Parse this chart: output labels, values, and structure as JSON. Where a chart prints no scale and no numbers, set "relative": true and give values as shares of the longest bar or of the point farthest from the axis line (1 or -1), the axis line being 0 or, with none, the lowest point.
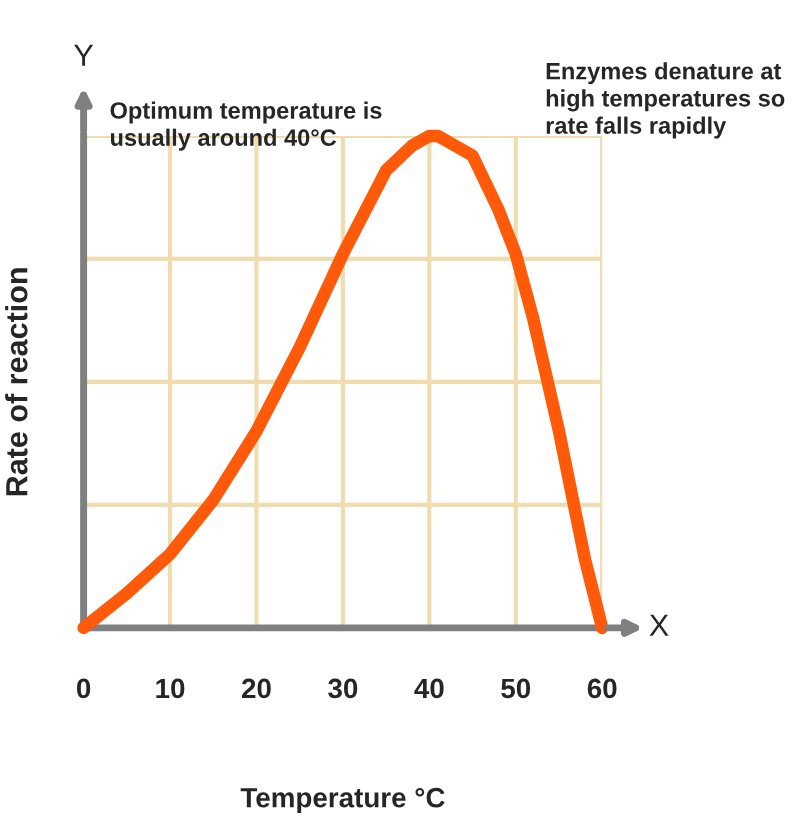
{
  "chart_data": {
    "type": "line",
    "xlabel": "Temperature °C",
    "ylabel": "Rate of reaction",
    "annotations": [
      "Optimum temperature is\nusually around 40°C",
      "Enzymes denature at\nhigh temperatures so\nrate falls rapidly",
      "Y",
      "X"
    ],
    "x": [
      0,
      5,
      10,
      15,
      20,
      25,
      30,
      35,
      38,
      40,
      41,
      42,
      45,
      48,
      50,
      52,
      55,
      58,
      60
    ],
    "series": [
      {
        "color": "#ff5a0a",
        "values": [
          0,
          0.07,
          0.15,
          0.26,
          0.4,
          0.57,
          0.76,
          0.93,
          0.98,
          1,
          1,
          0.99,
          0.96,
          0.85,
          0.76,
          0.63,
          0.4,
          0.14,
          0
        ]
      }
    ],
    "relative": true,
    "xlim": [
      0,
      60
    ],
    "xticks": [
      0,
      10,
      20,
      30,
      40,
      50,
      60
    ],
    "grid": true
  }
}
